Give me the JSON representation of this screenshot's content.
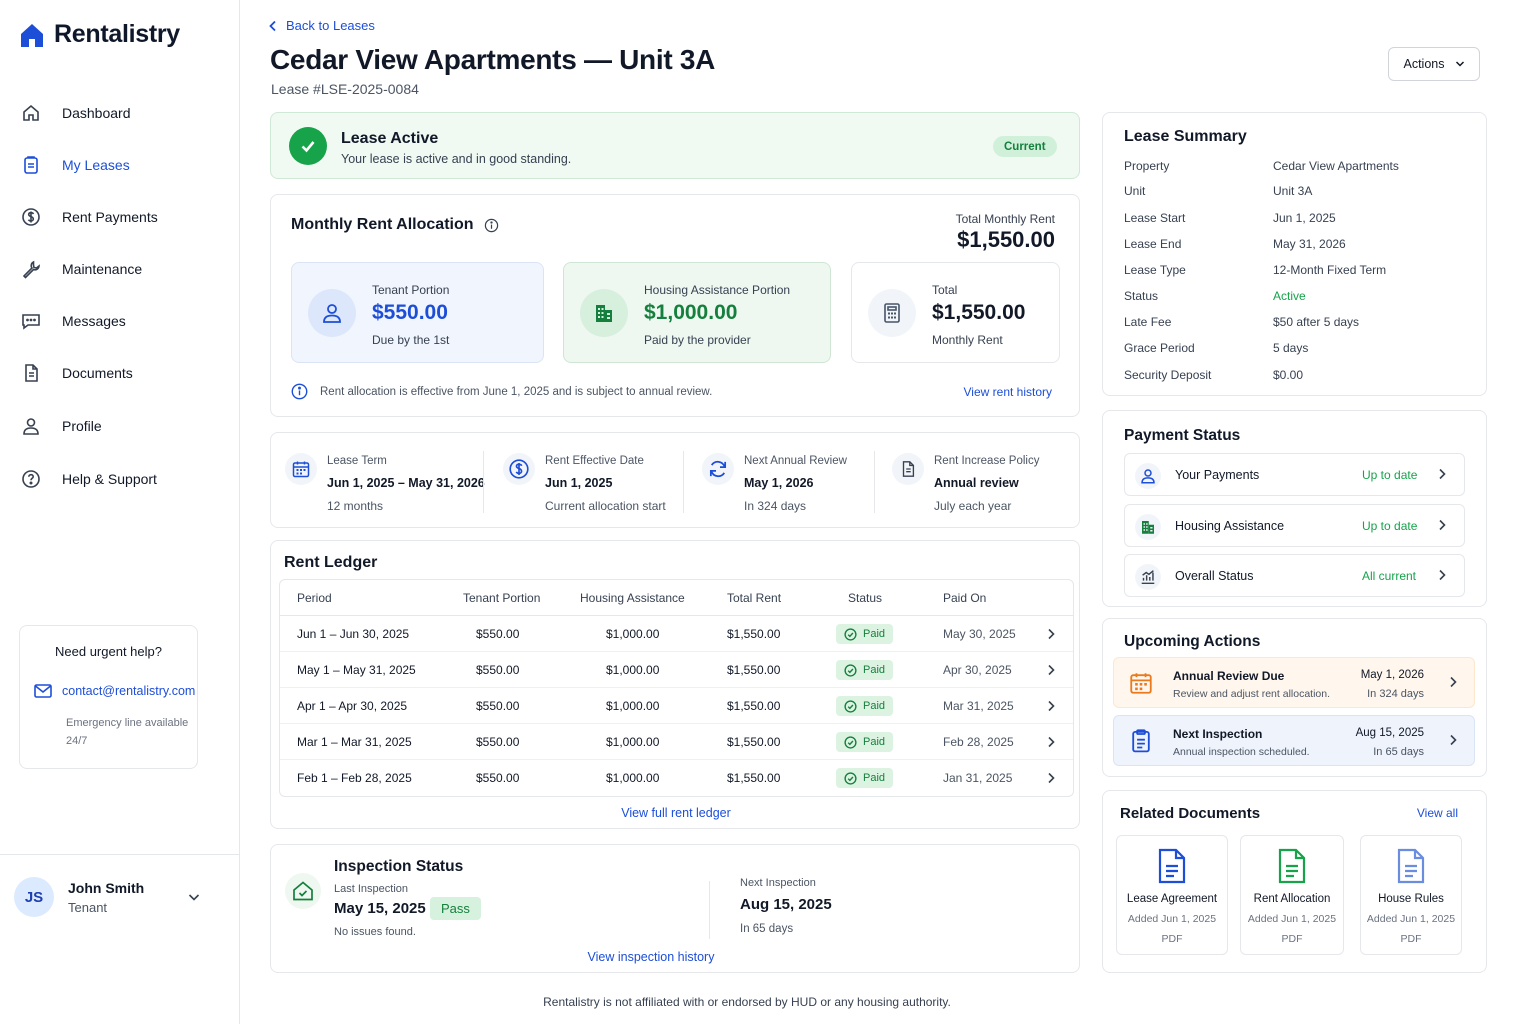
{
  "app": {
    "name": "Rentalistry",
    "brand_color": "#1d4ed8",
    "success_color": "#16a34a"
  },
  "sidebar": {
    "items": [
      {
        "label": "Dashboard",
        "icon": "home-icon"
      },
      {
        "label": "My Leases",
        "icon": "clipboard-icon",
        "active": true
      },
      {
        "label": "Rent Payments",
        "icon": "dollar-circle-icon"
      },
      {
        "label": "Maintenance",
        "icon": "wrench-icon"
      },
      {
        "label": "Messages",
        "icon": "chat-icon"
      },
      {
        "label": "Documents",
        "icon": "document-icon"
      },
      {
        "label": "Profile",
        "icon": "user-icon"
      },
      {
        "label": "Help & Support",
        "icon": "help-circle-icon"
      }
    ],
    "help": {
      "title": "Need urgent help?",
      "email": "contact@rentalistry.com",
      "note": "Emergency line available 24/7"
    },
    "user": {
      "initials": "JS",
      "name": "John Smith",
      "role": "Tenant"
    }
  },
  "header": {
    "back": "Back to Leases",
    "title": "Cedar View Apartments — Unit 3A",
    "subtitle": "Lease #LSE-2025-0084",
    "actions": "Actions"
  },
  "status": {
    "title": "Lease Active",
    "desc": "Your lease is active and in good standing.",
    "badge": "Current"
  },
  "allocation": {
    "title": "Monthly Rent Allocation",
    "total_label": "Total Monthly Rent",
    "total_value": "$1,550.00",
    "tenant": {
      "label": "Tenant Portion",
      "amount": "$550.00",
      "sub": "Due by the 1st"
    },
    "housing": {
      "label": "Housing Assistance Portion",
      "amount": "$1,000.00",
      "sub": "Paid by the provider"
    },
    "total": {
      "label": "Total",
      "amount": "$1,550.00",
      "sub": "Monthly Rent"
    },
    "note": "Rent allocation is effective from June 1, 2025 and is subject to annual review.",
    "link": "View rent history"
  },
  "terms": [
    {
      "label": "Lease Term",
      "value": "Jun 1, 2025 – May 31, 2026",
      "sub": "12 months",
      "icon": "calendar-icon"
    },
    {
      "label": "Rent Effective Date",
      "value": "Jun 1, 2025",
      "sub": "Current allocation start",
      "icon": "dollar-circle-icon"
    },
    {
      "label": "Next Annual Review",
      "value": "May 1, 2026",
      "sub": "In 324 days",
      "icon": "refresh-icon"
    },
    {
      "label": "Rent Increase Policy",
      "value": "Annual review",
      "sub": "July each year",
      "icon": "document-icon"
    }
  ],
  "ledger": {
    "title": "Rent Ledger",
    "headers": [
      "Period",
      "Tenant Portion",
      "Housing Assistance",
      "Total Rent",
      "Status",
      "Paid On"
    ],
    "rows": [
      {
        "period": "Jun 1 – Jun 30, 2025",
        "tenant": "$550.00",
        "housing": "$1,000.00",
        "total": "$1,550.00",
        "status": "Paid",
        "paid_on": "May 30, 2025"
      },
      {
        "period": "May 1 – May 31, 2025",
        "tenant": "$550.00",
        "housing": "$1,000.00",
        "total": "$1,550.00",
        "status": "Paid",
        "paid_on": "Apr 30, 2025"
      },
      {
        "period": "Apr 1 – Apr 30, 2025",
        "tenant": "$550.00",
        "housing": "$1,000.00",
        "total": "$1,550.00",
        "status": "Paid",
        "paid_on": "Mar 31, 2025"
      },
      {
        "period": "Mar 1 – Mar 31, 2025",
        "tenant": "$550.00",
        "housing": "$1,000.00",
        "total": "$1,550.00",
        "status": "Paid",
        "paid_on": "Feb 28, 2025"
      },
      {
        "period": "Feb 1 – Feb 28, 2025",
        "tenant": "$550.00",
        "housing": "$1,000.00",
        "total": "$1,550.00",
        "status": "Paid",
        "paid_on": "Jan 31, 2025"
      }
    ],
    "link": "View full rent ledger"
  },
  "inspection": {
    "title": "Inspection Status",
    "last_label": "Last Inspection",
    "last_date": "May 15, 2025",
    "result": "Pass",
    "note": "No issues found.",
    "next_label": "Next Inspection",
    "next_date": "Aug 15, 2025",
    "next_sub": "In 65 days",
    "link": "View inspection history"
  },
  "summary": {
    "title": "Lease Summary",
    "rows": [
      {
        "k": "Property",
        "v": "Cedar View Apartments"
      },
      {
        "k": "Unit",
        "v": "Unit 3A"
      },
      {
        "k": "Lease Start",
        "v": "Jun 1, 2025"
      },
      {
        "k": "Lease End",
        "v": "May 31, 2026"
      },
      {
        "k": "Lease Type",
        "v": "12-Month Fixed Term"
      },
      {
        "k": "Status",
        "v": "Active"
      },
      {
        "k": "Late Fee",
        "v": "$50 after 5 days"
      },
      {
        "k": "Grace Period",
        "v": "5 days"
      },
      {
        "k": "Security Deposit",
        "v": "$0.00"
      }
    ]
  },
  "payment_status": {
    "title": "Payment Status",
    "rows": [
      {
        "name": "Your Payments",
        "status": "Up to date",
        "icon": "user-icon"
      },
      {
        "name": "Housing Assistance",
        "status": "Up to date",
        "icon": "building-icon"
      },
      {
        "name": "Overall Status",
        "status": "All current",
        "icon": "chart-icon"
      }
    ]
  },
  "upcoming": {
    "title": "Upcoming Actions",
    "rows": [
      {
        "name": "Annual Review Due",
        "desc": "Review and adjust rent allocation.",
        "date": "May 1, 2026",
        "days": "In 324 days",
        "icon": "calendar-icon"
      },
      {
        "name": "Next Inspection",
        "desc": "Annual inspection scheduled.",
        "date": "Aug 15, 2025",
        "days": "In 65 days",
        "icon": "clipboard-icon"
      }
    ]
  },
  "documents": {
    "title": "Related Documents",
    "link": "View all",
    "items": [
      {
        "name": "Lease Agreement",
        "date": "Added Jun 1, 2025",
        "type": "PDF",
        "color": "#1d4ed8"
      },
      {
        "name": "Rent Allocation",
        "date": "Added Jun 1, 2025",
        "type": "PDF",
        "color": "#16a34a"
      },
      {
        "name": "House Rules",
        "date": "Added Jun 1, 2025",
        "type": "PDF",
        "color": "#6b8de0"
      }
    ]
  },
  "footer": "Rentalistry is not affiliated with or endorsed by HUD or any housing authority."
}
